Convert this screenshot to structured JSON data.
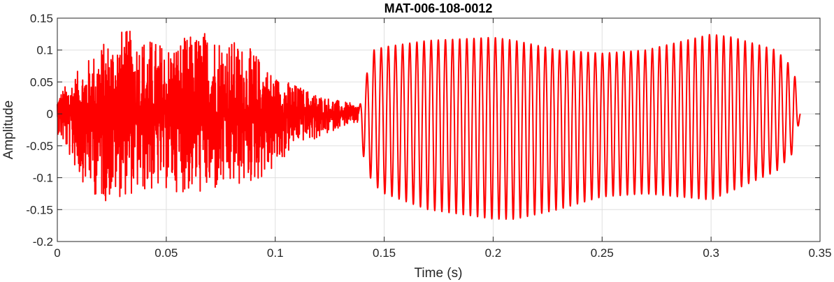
{
  "chart_data": {
    "type": "line",
    "title": "MAT-006-108-0012",
    "xlabel": "Time (s)",
    "ylabel": "Amplitude",
    "xlim": [
      0,
      0.35
    ],
    "ylim": [
      -0.2,
      0.15
    ],
    "grid": true,
    "x_ticks": [
      0,
      0.05,
      0.1,
      0.15,
      0.2,
      0.25,
      0.3,
      0.35
    ],
    "x_tick_labels": [
      "0",
      "0.05",
      "0.1",
      "0.15",
      "0.2",
      "0.25",
      "0.3",
      "0.35"
    ],
    "y_ticks": [
      -0.2,
      -0.15,
      -0.1,
      -0.05,
      0,
      0.05,
      0.1,
      0.15
    ],
    "y_tick_labels": [
      "-0.2",
      "-0.15",
      "-0.1",
      "-0.05",
      "0",
      "0.05",
      "0.1",
      "0.15"
    ],
    "series": [
      {
        "color": "#ff0000",
        "x_range": [
          0,
          0.341
        ],
        "noise_segment": {
          "x_range": [
            0,
            0.138
          ],
          "envelope_x": [
            0,
            0.01,
            0.02,
            0.03,
            0.05,
            0.07,
            0.09,
            0.1,
            0.11,
            0.12,
            0.13,
            0.138
          ],
          "envelope_max": [
            0.03,
            0.07,
            0.11,
            0.135,
            0.11,
            0.135,
            0.1,
            0.06,
            0.045,
            0.03,
            0.02,
            0.015
          ],
          "envelope_min": [
            -0.03,
            -0.1,
            -0.14,
            -0.13,
            -0.12,
            -0.13,
            -0.11,
            -0.09,
            -0.045,
            -0.04,
            -0.02,
            -0.015
          ]
        },
        "tonal_segment": {
          "x_range": [
            0.138,
            0.341
          ],
          "cycles": 62,
          "envelope_x": [
            0.138,
            0.141,
            0.145,
            0.15,
            0.17,
            0.2,
            0.21,
            0.23,
            0.25,
            0.27,
            0.3,
            0.31,
            0.33,
            0.338,
            0.341
          ],
          "envelope_max": [
            0.0,
            0.05,
            0.1,
            0.105,
            0.115,
            0.12,
            0.115,
            0.1,
            0.095,
            0.1,
            0.125,
            0.12,
            0.1,
            0.07,
            0.0
          ],
          "envelope_min": [
            0.0,
            -0.08,
            -0.11,
            -0.125,
            -0.15,
            -0.165,
            -0.165,
            -0.15,
            -0.13,
            -0.125,
            -0.135,
            -0.12,
            -0.09,
            -0.06,
            0.0
          ]
        }
      }
    ]
  }
}
